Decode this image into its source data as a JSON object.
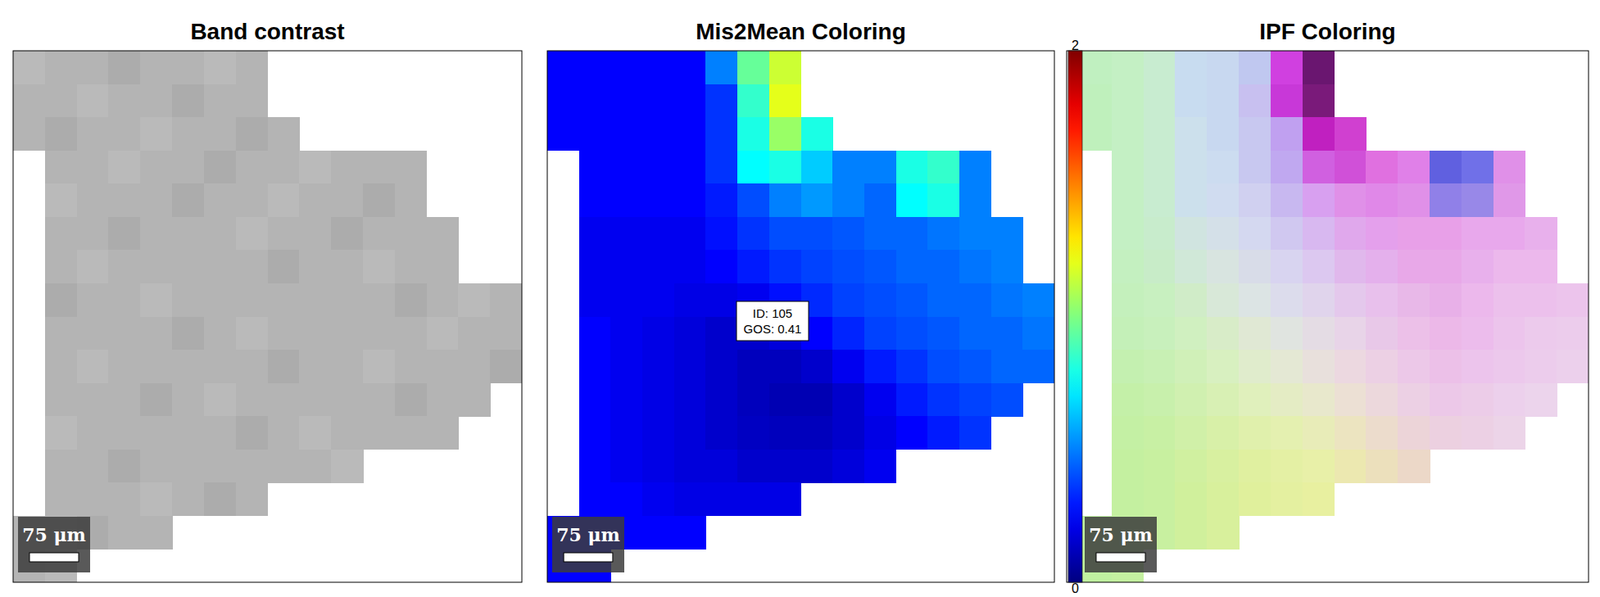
{
  "chart_data": [
    {
      "type": "heatmap",
      "title": "Band contrast",
      "xlim": [
        0,
        776
      ],
      "ylim": [
        0,
        811
      ],
      "tick_labels": false,
      "scale_bar": {
        "length": 75,
        "label": "75 μm"
      },
      "colors": [
        [
          "#bababa",
          "#b4b4b4",
          "#b4b4b4",
          "#acacac",
          "#b4b4b4",
          "#b4b4b4",
          "#bababa",
          "#b4b4b4",
          null,
          null,
          null,
          null,
          null,
          null,
          null,
          null
        ],
        [
          "#b4b4b4",
          "#b4b4b4",
          "#bababa",
          "#b4b4b4",
          "#b4b4b4",
          "#acacac",
          "#b4b4b4",
          "#b4b4b4",
          null,
          null,
          null,
          null,
          null,
          null,
          null,
          null
        ],
        [
          "#b4b4b4",
          "#acacac",
          "#b4b4b4",
          "#b4b4b4",
          "#bababa",
          "#b4b4b4",
          "#b4b4b4",
          "#acacac",
          "#b4b4b4",
          null,
          null,
          null,
          null,
          null,
          null,
          null
        ],
        [
          null,
          "#b4b4b4",
          "#b4b4b4",
          "#bababa",
          "#b4b4b4",
          "#b4b4b4",
          "#acacac",
          "#b4b4b4",
          "#b4b4b4",
          "#bababa",
          "#b4b4b4",
          "#b4b4b4",
          "#b4b4b4",
          null,
          null,
          null
        ],
        [
          null,
          "#bababa",
          "#b4b4b4",
          "#b4b4b4",
          "#b4b4b4",
          "#acacac",
          "#b4b4b4",
          "#b4b4b4",
          "#bababa",
          "#b4b4b4",
          "#b4b4b4",
          "#acacac",
          "#b4b4b4",
          null,
          null,
          null
        ],
        [
          null,
          "#b4b4b4",
          "#b4b4b4",
          "#acacac",
          "#b4b4b4",
          "#b4b4b4",
          "#b4b4b4",
          "#bababa",
          "#b4b4b4",
          "#b4b4b4",
          "#acacac",
          "#b4b4b4",
          "#b4b4b4",
          "#b4b4b4",
          null,
          null
        ],
        [
          null,
          "#b4b4b4",
          "#bababa",
          "#b4b4b4",
          "#b4b4b4",
          "#b4b4b4",
          "#b4b4b4",
          "#b4b4b4",
          "#acacac",
          "#b4b4b4",
          "#b4b4b4",
          "#bababa",
          "#b4b4b4",
          "#b4b4b4",
          null,
          null
        ],
        [
          null,
          "#acacac",
          "#b4b4b4",
          "#b4b4b4",
          "#bababa",
          "#b4b4b4",
          "#b4b4b4",
          "#b4b4b4",
          "#b4b4b4",
          "#b4b4b4",
          "#b4b4b4",
          "#b4b4b4",
          "#acacac",
          "#b4b4b4",
          "#bababa",
          "#b4b4b4"
        ],
        [
          null,
          "#b4b4b4",
          "#b4b4b4",
          "#b4b4b4",
          "#b4b4b4",
          "#acacac",
          "#b4b4b4",
          "#bababa",
          "#b4b4b4",
          "#b4b4b4",
          "#b4b4b4",
          "#b4b4b4",
          "#b4b4b4",
          "#bababa",
          "#b4b4b4",
          "#b4b4b4"
        ],
        [
          null,
          "#b4b4b4",
          "#bababa",
          "#b4b4b4",
          "#b4b4b4",
          "#b4b4b4",
          "#b4b4b4",
          "#b4b4b4",
          "#acacac",
          "#b4b4b4",
          "#b4b4b4",
          "#bababa",
          "#b4b4b4",
          "#b4b4b4",
          "#b4b4b4",
          "#acacac"
        ],
        [
          null,
          "#b4b4b4",
          "#b4b4b4",
          "#b4b4b4",
          "#acacac",
          "#b4b4b4",
          "#bababa",
          "#b4b4b4",
          "#b4b4b4",
          "#b4b4b4",
          "#b4b4b4",
          "#b4b4b4",
          "#acacac",
          "#b4b4b4",
          "#b4b4b4",
          null
        ],
        [
          null,
          "#bababa",
          "#b4b4b4",
          "#b4b4b4",
          "#b4b4b4",
          "#b4b4b4",
          "#b4b4b4",
          "#acacac",
          "#b4b4b4",
          "#bababa",
          "#b4b4b4",
          "#b4b4b4",
          "#b4b4b4",
          "#b4b4b4",
          null,
          null
        ],
        [
          null,
          "#b4b4b4",
          "#b4b4b4",
          "#acacac",
          "#b4b4b4",
          "#b4b4b4",
          "#b4b4b4",
          "#b4b4b4",
          "#b4b4b4",
          "#b4b4b4",
          "#bababa",
          null,
          null,
          null,
          null,
          null
        ],
        [
          null,
          "#b4b4b4",
          "#b4b4b4",
          "#b4b4b4",
          "#bababa",
          "#b4b4b4",
          "#acacac",
          "#b4b4b4",
          null,
          null,
          null,
          null,
          null,
          null,
          null,
          null
        ],
        [
          "#b4b4b4",
          "#b4b4b4",
          "#acacac",
          "#b4b4b4",
          "#b4b4b4",
          null,
          null,
          null,
          null,
          null,
          null,
          null,
          null,
          null,
          null,
          null
        ],
        [
          "#b4b4b4",
          "#bababa",
          null,
          null,
          null,
          null,
          null,
          null,
          null,
          null,
          null,
          null,
          null,
          null,
          null,
          null
        ]
      ]
    },
    {
      "type": "heatmap",
      "title": "Mis2Mean Coloring",
      "xlim": [
        0,
        776
      ],
      "ylim": [
        0,
        811
      ],
      "tick_labels": false,
      "scale_bar": {
        "length": 75,
        "label": "75 μm"
      },
      "color_range": [
        0,
        2
      ],
      "color_ticks": [
        0,
        2
      ],
      "annotation": [
        "ID: 105",
        "GOS: 0.41"
      ],
      "values": [
        [
          0.25,
          0.25,
          0.25,
          0.25,
          0.25,
          0.5,
          0.95,
          1.15,
          null,
          null,
          null,
          null,
          null,
          null,
          null,
          null
        ],
        [
          0.25,
          0.25,
          0.25,
          0.25,
          0.25,
          0.35,
          0.85,
          1.2,
          null,
          null,
          null,
          null,
          null,
          null,
          null,
          null
        ],
        [
          0.25,
          0.25,
          0.25,
          0.25,
          0.25,
          0.35,
          0.8,
          1.05,
          0.8,
          null,
          null,
          null,
          null,
          null,
          null,
          null
        ],
        [
          null,
          0.25,
          0.25,
          0.25,
          0.25,
          0.35,
          0.75,
          0.8,
          0.65,
          0.5,
          0.5,
          0.8,
          0.85,
          0.5,
          null,
          null
        ],
        [
          null,
          0.25,
          0.25,
          0.25,
          0.25,
          0.3,
          0.4,
          0.5,
          0.55,
          0.5,
          0.45,
          0.75,
          0.8,
          0.5,
          null,
          null
        ],
        [
          null,
          0.22,
          0.22,
          0.22,
          0.22,
          0.28,
          0.35,
          0.4,
          0.4,
          0.42,
          0.45,
          0.45,
          0.48,
          0.5,
          0.5,
          null
        ],
        [
          null,
          0.22,
          0.22,
          0.22,
          0.22,
          0.25,
          0.3,
          0.35,
          0.38,
          0.4,
          0.42,
          0.45,
          0.45,
          0.48,
          0.5,
          null
        ],
        [
          null,
          0.22,
          0.22,
          0.22,
          0.2,
          0.2,
          0.22,
          0.28,
          0.33,
          0.38,
          0.4,
          0.42,
          0.45,
          0.45,
          0.48,
          0.5
        ],
        [
          null,
          0.25,
          0.22,
          0.2,
          0.18,
          0.15,
          0.15,
          0.18,
          0.25,
          0.32,
          0.38,
          0.4,
          0.42,
          0.45,
          0.45,
          0.48
        ],
        [
          null,
          0.25,
          0.22,
          0.2,
          0.18,
          0.15,
          0.12,
          0.12,
          0.15,
          0.22,
          0.3,
          0.35,
          0.4,
          0.42,
          0.45,
          0.45
        ],
        [
          null,
          0.25,
          0.22,
          0.2,
          0.18,
          0.15,
          0.12,
          0.1,
          0.1,
          0.15,
          0.22,
          0.3,
          0.35,
          0.38,
          0.4,
          null
        ],
        [
          null,
          0.25,
          0.22,
          0.2,
          0.18,
          0.15,
          0.13,
          0.12,
          0.12,
          0.15,
          0.2,
          0.25,
          0.3,
          0.35,
          null,
          null
        ],
        [
          null,
          0.25,
          0.22,
          0.2,
          0.18,
          0.18,
          0.15,
          0.15,
          0.15,
          0.18,
          0.22,
          null,
          null,
          null,
          null,
          null
        ],
        [
          null,
          0.25,
          0.25,
          0.22,
          0.2,
          0.2,
          0.2,
          0.2,
          null,
          null,
          null,
          null,
          null,
          null,
          null,
          null
        ],
        [
          0.25,
          0.25,
          0.25,
          0.25,
          0.25,
          null,
          null,
          null,
          null,
          null,
          null,
          null,
          null,
          null,
          null,
          null
        ],
        [
          0.25,
          0.25,
          null,
          null,
          null,
          null,
          null,
          null,
          null,
          null,
          null,
          null,
          null,
          null,
          null,
          null
        ]
      ]
    },
    {
      "type": "heatmap",
      "title": "IPF Coloring",
      "xlim": [
        0,
        776
      ],
      "ylim": [
        0,
        811
      ],
      "tick_labels": false,
      "scale_bar": {
        "length": 75,
        "label": "75 μm"
      },
      "colors": [
        [
          "#c0f0c0",
          "#c4f0c4",
          "#c8ecd0",
          "#c8dcf0",
          "#c8d8f0",
          "#c0c8f0",
          "#d040e0",
          "#6a1670",
          null,
          null,
          null,
          null,
          null,
          null,
          null,
          null
        ],
        [
          "#bff0bc",
          "#c4f0c4",
          "#c8ecd0",
          "#c8dcf0",
          "#c8d8f0",
          "#c8c0f0",
          "#c838d8",
          "#7a1a7a",
          null,
          null,
          null,
          null,
          null,
          null,
          null,
          null
        ],
        [
          "#bff0bc",
          "#c4f0c4",
          "#c8ecd0",
          "#cce0ec",
          "#c8d8f0",
          "#c8c8f0",
          "#c0a0f0",
          "#c020c0",
          "#d040d0",
          null,
          null,
          null,
          null,
          null,
          null,
          null
        ],
        [
          null,
          "#c4f0c4",
          "#c8ecd0",
          "#cce0ec",
          "#ccdcf0",
          "#c8c8f0",
          "#c0a8f0",
          "#d060e0",
          "#d050d8",
          "#e070e0",
          "#e080e8",
          "#6060e0",
          "#7070e8",
          "#e090e8",
          null,
          null
        ],
        [
          null,
          "#c4f0c4",
          "#c8ecd0",
          "#cce0ec",
          "#d0dcf0",
          "#d0d0f0",
          "#c8b8f0",
          "#d8a0f0",
          "#e090e8",
          "#e088e8",
          "#e090e8",
          "#9080e8",
          "#9888e8",
          "#e098e8",
          null,
          null
        ],
        [
          null,
          "#c4f0c4",
          "#c8eccc",
          "#d0e4e0",
          "#d4e0e8",
          "#d4d8f0",
          "#d0c8f0",
          "#d8b8f0",
          "#e0a8ec",
          "#e4a0ec",
          "#e8a0e8",
          "#e8a0e8",
          "#e8a8ec",
          "#e8a8ec",
          "#e8b0ec",
          null
        ],
        [
          null,
          "#c4f0c0",
          "#c8ecc8",
          "#d0e8d8",
          "#d8e4e0",
          "#d8dce8",
          "#d8d4f0",
          "#dcc8f0",
          "#e0b8ec",
          "#e4b0ec",
          "#e8a8e8",
          "#e8a8e8",
          "#e8b0ec",
          "#ecb8ec",
          "#ecb8ec",
          null
        ],
        [
          null,
          "#c4f0bc",
          "#c8f0c0",
          "#d0ecc8",
          "#d8e8d8",
          "#dce4e4",
          "#dcdcec",
          "#e0d4ec",
          "#e4c8ec",
          "#e8c0ec",
          "#e8b8e8",
          "#e8b0e8",
          "#ecb8ec",
          "#ecc0ec",
          "#ecc0ec",
          "#ecc4ec"
        ],
        [
          null,
          "#c4f0b8",
          "#c8f0bc",
          "#d0f0c0",
          "#d8ecc8",
          "#e0e8d4",
          "#e0e4e0",
          "#e4dce4",
          "#e8d4e8",
          "#e8c8e8",
          "#ecc0e8",
          "#ecb8e8",
          "#ecbcec",
          "#ecc4ec",
          "#eccaec",
          "#ecccec"
        ],
        [
          null,
          "#c4f0b0",
          "#c8f0b4",
          "#d0f0b8",
          "#d8f0c0",
          "#e0eccc",
          "#e4e8d4",
          "#e8e0dc",
          "#ecd8e0",
          "#ecd0e4",
          "#ecc8e8",
          "#ecc0e8",
          "#ecc4ec",
          "#ecc8ec",
          "#ecccec",
          "#ecd0ec"
        ],
        [
          null,
          "#c4f0a8",
          "#c8f0ac",
          "#d0f0b0",
          "#d8f0b4",
          "#e0f0bc",
          "#e4ecc4",
          "#e8e8cc",
          "#ece0d4",
          "#ecd8dc",
          "#ecd0e4",
          "#ecc8e8",
          "#eccce8",
          "#ecd0ec",
          "#ecd4ec",
          null
        ],
        [
          null,
          "#c4f0a4",
          "#c8f0a4",
          "#d0f0a8",
          "#d8f0a8",
          "#e0f0ac",
          "#e4f0b0",
          "#e8ecb8",
          "#ece4c0",
          "#ecdccc",
          "#ecd4d8",
          "#ecd0e0",
          "#ecd0e4",
          "#ecd4e8",
          null,
          null
        ],
        [
          null,
          "#c4f0a0",
          "#c8f0a0",
          "#d0f0a0",
          "#d8f0a0",
          "#e0f0a0",
          "#e4f0a4",
          "#e8f0a8",
          "#ece8b0",
          "#ece0bc",
          "#ecd8c8",
          null,
          null,
          null,
          null,
          null
        ],
        [
          null,
          "#c4f0a0",
          "#c8f0a0",
          "#d0f09c",
          "#d8f09c",
          "#e0f09c",
          "#e4f0a0",
          "#e8f0a0",
          null,
          null,
          null,
          null,
          null,
          null,
          null,
          null
        ],
        [
          "#c0f0a4",
          "#c4f0a0",
          "#c8f0a0",
          "#d0f09c",
          "#d8f09c",
          null,
          null,
          null,
          null,
          null,
          null,
          null,
          null,
          null,
          null,
          null
        ],
        [
          "#c0f0a0",
          "#c4f0a0",
          null,
          null,
          null,
          null,
          null,
          null,
          null,
          null,
          null,
          null,
          null,
          null,
          null,
          null
        ]
      ]
    }
  ]
}
